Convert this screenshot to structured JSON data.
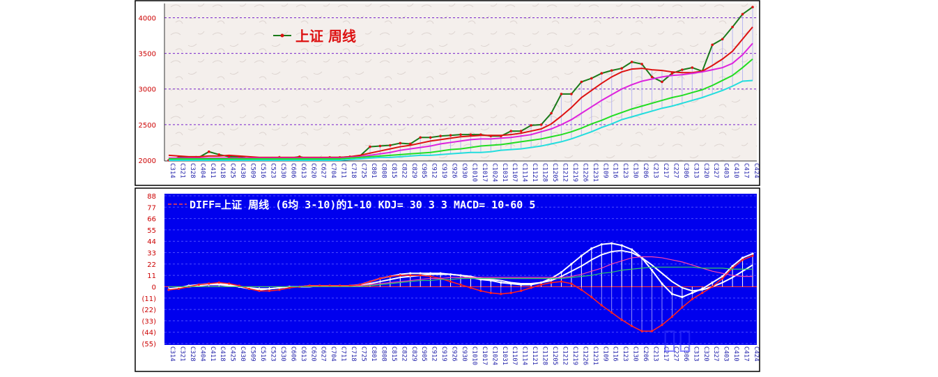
{
  "chart_data": [
    {
      "type": "line",
      "title": "上证  周线",
      "ylim": [
        2000,
        4200
      ],
      "yticks": [
        "2000",
        "2500",
        "3000",
        "3500",
        "4000"
      ],
      "x": [
        "C314",
        "C321",
        "C328",
        "C404",
        "C411",
        "C418",
        "C425",
        "C430",
        "C509",
        "C516",
        "C523",
        "C530",
        "C606",
        "C613",
        "C620",
        "C627",
        "C704",
        "C711",
        "C718",
        "C725",
        "C801",
        "C808",
        "C815",
        "C822",
        "C829",
        "C905",
        "C912",
        "C919",
        "C926",
        "C930",
        "C1010",
        "C1017",
        "C1024",
        "C1031",
        "C1107",
        "C1114",
        "C1121",
        "C1128",
        "C1205",
        "C1212",
        "C1219",
        "C1226",
        "C1231",
        "C109",
        "C116",
        "C123",
        "C130",
        "C206",
        "C213",
        "C217",
        "C227",
        "C306",
        "C313",
        "C320",
        "C327",
        "C403",
        "C410",
        "C417",
        "C424"
      ],
      "series": [
        {
          "color": "#1a7a1a",
          "values": [
            2000,
            2040,
            2040,
            2040,
            2120,
            2080,
            2050,
            2050,
            2020,
            2020,
            2030,
            2040,
            2030,
            2050,
            2020,
            2030,
            2040,
            2040,
            2050,
            2060,
            2190,
            2200,
            2210,
            2240,
            2230,
            2320,
            2320,
            2340,
            2350,
            2360,
            2360,
            2360,
            2340,
            2340,
            2410,
            2410,
            2490,
            2500,
            2660,
            2930,
            2930,
            3100,
            3150,
            3220,
            3260,
            3290,
            3380,
            3350,
            3170,
            3100,
            3220,
            3270,
            3300,
            3250,
            3620,
            3700,
            3870,
            4050,
            4150
          ]
        },
        {
          "color": "#dd1111",
          "values": [
            2070,
            2060,
            2050,
            2050,
            2060,
            2060,
            2070,
            2060,
            2050,
            2040,
            2040,
            2040,
            2040,
            2040,
            2040,
            2040,
            2040,
            2040,
            2050,
            2070,
            2100,
            2130,
            2160,
            2190,
            2210,
            2240,
            2270,
            2290,
            2310,
            2330,
            2340,
            2350,
            2350,
            2350,
            2360,
            2380,
            2410,
            2440,
            2510,
            2620,
            2740,
            2880,
            2980,
            3080,
            3170,
            3240,
            3280,
            3290,
            3270,
            3260,
            3240,
            3230,
            3230,
            3250,
            3330,
            3420,
            3530,
            3700,
            3870
          ]
        },
        {
          "color": "#dd22dd",
          "values": [
            2030,
            2030,
            2030,
            2030,
            2030,
            2030,
            2030,
            2030,
            2030,
            2030,
            2030,
            2030,
            2030,
            2030,
            2030,
            2030,
            2030,
            2030,
            2040,
            2050,
            2070,
            2090,
            2110,
            2140,
            2160,
            2180,
            2200,
            2230,
            2250,
            2270,
            2290,
            2300,
            2300,
            2310,
            2320,
            2340,
            2360,
            2400,
            2440,
            2500,
            2570,
            2660,
            2750,
            2840,
            2920,
            3000,
            3060,
            3110,
            3140,
            3170,
            3190,
            3200,
            3220,
            3240,
            3270,
            3300,
            3360,
            3480,
            3640
          ]
        },
        {
          "color": "#22dd22",
          "values": [
            2020,
            2020,
            2020,
            2020,
            2020,
            2020,
            2020,
            2020,
            2020,
            2020,
            2020,
            2020,
            2020,
            2020,
            2020,
            2020,
            2020,
            2020,
            2030,
            2040,
            2050,
            2060,
            2070,
            2080,
            2090,
            2100,
            2110,
            2130,
            2150,
            2160,
            2180,
            2200,
            2210,
            2220,
            2240,
            2260,
            2280,
            2300,
            2330,
            2360,
            2400,
            2450,
            2510,
            2560,
            2620,
            2670,
            2720,
            2760,
            2800,
            2840,
            2880,
            2910,
            2950,
            2990,
            3050,
            3120,
            3190,
            3300,
            3420
          ]
        },
        {
          "color": "#22dddd",
          "values": [
            2000,
            2000,
            2000,
            2000,
            2000,
            2000,
            2000,
            2000,
            2000,
            2000,
            2000,
            2000,
            2000,
            2000,
            2000,
            2000,
            2000,
            2000,
            2010,
            2020,
            2030,
            2040,
            2040,
            2050,
            2060,
            2070,
            2070,
            2080,
            2090,
            2100,
            2110,
            2110,
            2120,
            2140,
            2150,
            2160,
            2180,
            2200,
            2230,
            2260,
            2300,
            2350,
            2400,
            2460,
            2510,
            2570,
            2610,
            2650,
            2690,
            2730,
            2760,
            2800,
            2840,
            2880,
            2930,
            2980,
            3040,
            3110,
            3120
          ]
        }
      ]
    },
    {
      "type": "line",
      "title": "DIFF=上证  周线  (6均  3-10)的1-10  KDJ= 30  3  3  MACD= 10-60  5",
      "ylim": [
        -55,
        88
      ],
      "yticks": [
        "88",
        "77",
        "66",
        "55",
        "44",
        "33",
        "22",
        "11",
        "0",
        "(11)",
        "(22)",
        "(33)",
        "(44)",
        "(55)"
      ],
      "x": [
        "C314",
        "C321",
        "C328",
        "C404",
        "C411",
        "C418",
        "C425",
        "C430",
        "C509",
        "C516",
        "C523",
        "C530",
        "C606",
        "C613",
        "C620",
        "C627",
        "C704",
        "C711",
        "C718",
        "C725",
        "C801",
        "C808",
        "C815",
        "C822",
        "C829",
        "C905",
        "C912",
        "C919",
        "C926",
        "C930",
        "C1010",
        "C1017",
        "C1024",
        "C1031",
        "C1107",
        "C1114",
        "C1121",
        "C1128",
        "C1205",
        "C1212",
        "C1219",
        "C1226",
        "C1231",
        "C109",
        "C116",
        "C123",
        "C130",
        "C206",
        "C213",
        "C217",
        "C227",
        "C306",
        "C313",
        "C320",
        "C327",
        "C403",
        "C410",
        "C417",
        "C424"
      ],
      "series": [
        {
          "color": "#ffffff",
          "values": [
            -3,
            -1,
            1,
            2,
            3,
            3,
            2,
            0,
            -2,
            -3,
            -2,
            -1,
            0,
            0,
            1,
            1,
            1,
            1,
            1,
            2,
            5,
            8,
            10,
            12,
            13,
            13,
            13,
            13,
            12,
            11,
            9,
            7,
            6,
            4,
            3,
            2,
            2,
            4,
            8,
            14,
            22,
            30,
            37,
            41,
            42,
            40,
            36,
            28,
            16,
            3,
            -7,
            -10,
            -6,
            -2,
            4,
            10,
            20,
            28,
            32
          ]
        },
        {
          "color": "#ffffff",
          "values": [
            -2,
            -1,
            0,
            1,
            2,
            2,
            1,
            0,
            -1,
            -2,
            -2,
            -1,
            0,
            0,
            0,
            1,
            1,
            1,
            1,
            1,
            3,
            5,
            7,
            9,
            10,
            11,
            12,
            12,
            12,
            11,
            10,
            8,
            7,
            6,
            4,
            3,
            3,
            4,
            6,
            10,
            15,
            20,
            26,
            31,
            34,
            35,
            33,
            28,
            21,
            13,
            5,
            -1,
            -4,
            -3,
            0,
            4,
            9,
            15,
            21
          ]
        },
        {
          "color": "#ff2222",
          "values": [
            -3,
            -2,
            0,
            2,
            3,
            4,
            3,
            1,
            -2,
            -4,
            -4,
            -3,
            -1,
            0,
            1,
            1,
            1,
            1,
            1,
            2,
            5,
            8,
            10,
            11,
            11,
            11,
            10,
            8,
            5,
            2,
            -1,
            -4,
            -6,
            -7,
            -6,
            -4,
            -1,
            2,
            4,
            5,
            3,
            -3,
            -10,
            -18,
            -25,
            -32,
            -38,
            -43,
            -43,
            -37,
            -29,
            -20,
            -12,
            -6,
            0,
            8,
            18,
            26,
            30
          ]
        },
        {
          "color": "#ff44aa",
          "values": [
            0,
            0,
            0,
            0,
            0,
            0,
            0,
            0,
            0,
            0,
            0,
            0,
            0,
            0,
            0,
            0,
            0,
            0,
            0,
            1,
            2,
            3,
            4,
            5,
            6,
            7,
            8,
            8,
            9,
            9,
            9,
            9,
            9,
            9,
            9,
            9,
            9,
            9,
            9,
            9,
            10,
            12,
            15,
            18,
            22,
            25,
            28,
            29,
            29,
            28,
            26,
            24,
            21,
            18,
            15,
            13,
            11,
            10,
            10
          ]
        },
        {
          "color": "#33cc66",
          "values": [
            0,
            0,
            0,
            0,
            0,
            0,
            0,
            0,
            0,
            0,
            0,
            0,
            0,
            0,
            0,
            0,
            0,
            0,
            0,
            0,
            1,
            2,
            3,
            4,
            5,
            6,
            6,
            7,
            7,
            8,
            8,
            8,
            8,
            8,
            8,
            8,
            8,
            8,
            8,
            8,
            9,
            10,
            11,
            13,
            14,
            16,
            17,
            18,
            19,
            19,
            19,
            19,
            19,
            18,
            18,
            18,
            17,
            17,
            17
          ]
        }
      ]
    }
  ]
}
